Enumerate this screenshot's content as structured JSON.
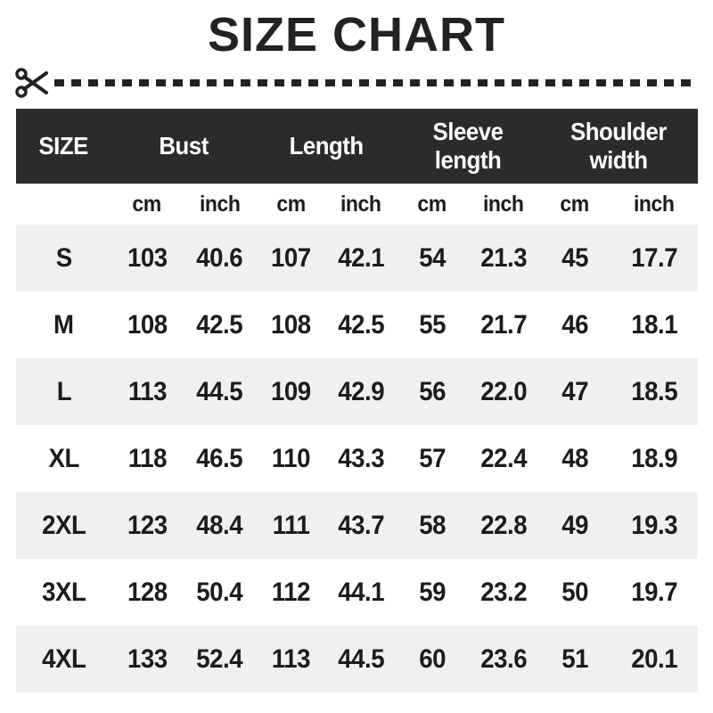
{
  "title": "SIZE CHART",
  "colors": {
    "header_bg": "#2b2b2b",
    "header_text": "#ffffff",
    "row_alt_bg": "#f0f0f0",
    "body_text": "#1c1c1c",
    "cut_line": "#222222"
  },
  "table": {
    "columns": [
      "SIZE",
      "Bust",
      "Length",
      "Sleeve length",
      "Shoulder width"
    ],
    "unit_headers": [
      "cm",
      "inch",
      "cm",
      "inch",
      "cm",
      "inch",
      "cm",
      "inch"
    ],
    "rows": [
      {
        "size": "S",
        "values": [
          "103",
          "40.6",
          "107",
          "42.1",
          "54",
          "21.3",
          "45",
          "17.7"
        ]
      },
      {
        "size": "M",
        "values": [
          "108",
          "42.5",
          "108",
          "42.5",
          "55",
          "21.7",
          "46",
          "18.1"
        ]
      },
      {
        "size": "L",
        "values": [
          "113",
          "44.5",
          "109",
          "42.9",
          "56",
          "22.0",
          "47",
          "18.5"
        ]
      },
      {
        "size": "XL",
        "values": [
          "118",
          "46.5",
          "110",
          "43.3",
          "57",
          "22.4",
          "48",
          "18.9"
        ]
      },
      {
        "size": "2XL",
        "values": [
          "123",
          "48.4",
          "111",
          "43.7",
          "58",
          "22.8",
          "49",
          "19.3"
        ]
      },
      {
        "size": "3XL",
        "values": [
          "128",
          "50.4",
          "112",
          "44.1",
          "59",
          "23.2",
          "50",
          "19.7"
        ]
      },
      {
        "size": "4XL",
        "values": [
          "133",
          "52.4",
          "113",
          "44.5",
          "60",
          "23.6",
          "51",
          "20.1"
        ]
      }
    ]
  },
  "chart_data": {
    "type": "table",
    "title": "SIZE CHART",
    "columns": [
      "SIZE",
      "Bust (cm)",
      "Bust (inch)",
      "Length (cm)",
      "Length (inch)",
      "Sleeve length (cm)",
      "Sleeve length (inch)",
      "Shoulder width (cm)",
      "Shoulder width (inch)"
    ],
    "rows": [
      [
        "S",
        103,
        40.6,
        107,
        42.1,
        54,
        21.3,
        45,
        17.7
      ],
      [
        "M",
        108,
        42.5,
        108,
        42.5,
        55,
        21.7,
        46,
        18.1
      ],
      [
        "L",
        113,
        44.5,
        109,
        42.9,
        56,
        22.0,
        47,
        18.5
      ],
      [
        "XL",
        118,
        46.5,
        110,
        43.3,
        57,
        22.4,
        48,
        18.9
      ],
      [
        "2XL",
        123,
        48.4,
        111,
        43.7,
        58,
        22.8,
        49,
        19.3
      ],
      [
        "3XL",
        128,
        50.4,
        112,
        44.1,
        59,
        23.2,
        50,
        19.7
      ],
      [
        "4XL",
        133,
        52.4,
        113,
        44.5,
        60,
        23.6,
        51,
        20.1
      ]
    ]
  }
}
